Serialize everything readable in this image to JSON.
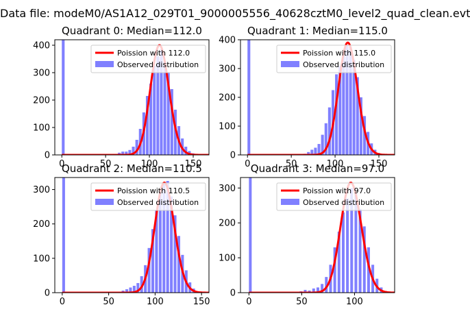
{
  "figure": {
    "suptitle": "Data file: modeM0/AS1A12_029T01_9000005556_40628cztM0_level2_quad_clean.evt"
  },
  "colors": {
    "poisson": "#ff0000",
    "observed": "#8080ff"
  },
  "chart_data": [
    {
      "type": "bar",
      "title": "Quadrant 0: Median=112.0",
      "xlim": [
        -8,
        168
      ],
      "ylim": [
        0,
        420
      ],
      "xticks": [
        0,
        50,
        100,
        150
      ],
      "yticks": [
        0,
        100,
        200,
        300,
        400
      ],
      "grid": false,
      "legend_position": "top-right",
      "median": 112.0,
      "zero_bin_count": 420,
      "series": [
        {
          "name": "Poission with 112.0",
          "type": "line",
          "mean": 112.0,
          "scale": 400
        },
        {
          "name": "Observed distribution",
          "type": "histogram",
          "bin_width": 3.2,
          "x": [
            0,
            60,
            64,
            68,
            72,
            76,
            80,
            84,
            88,
            92,
            96,
            100,
            104,
            108,
            112,
            116,
            120,
            124,
            128,
            132,
            136,
            140,
            144,
            148,
            152
          ],
          "values": [
            420,
            3,
            8,
            12,
            12,
            18,
            30,
            55,
            95,
            155,
            215,
            260,
            325,
            360,
            385,
            340,
            300,
            240,
            165,
            105,
            60,
            30,
            14,
            6,
            3
          ]
        }
      ]
    },
    {
      "type": "bar",
      "title": "Quadrant 1: Median=115.0",
      "xlim": [
        -8,
        168
      ],
      "ylim": [
        0,
        400
      ],
      "xticks": [
        0,
        50,
        100,
        150
      ],
      "yticks": [
        0,
        100,
        200,
        300,
        400
      ],
      "grid": false,
      "legend_position": "top-right",
      "median": 115.0,
      "zero_bin_count": 400,
      "series": [
        {
          "name": "Poission with 115.0",
          "type": "line",
          "mean": 115.0,
          "scale": 390
        },
        {
          "name": "Observed distribution",
          "type": "histogram",
          "bin_width": 3.2,
          "x": [
            0,
            64,
            68,
            72,
            76,
            80,
            84,
            88,
            92,
            96,
            100,
            104,
            108,
            112,
            116,
            120,
            124,
            128,
            132,
            136,
            140,
            144,
            148,
            152
          ],
          "values": [
            400,
            4,
            10,
            18,
            25,
            38,
            70,
            110,
            165,
            225,
            280,
            310,
            345,
            380,
            375,
            330,
            270,
            200,
            135,
            80,
            40,
            18,
            7,
            3
          ]
        }
      ]
    },
    {
      "type": "bar",
      "title": "Quadrant 2: Median=110.5",
      "xlim": [
        -8,
        158
      ],
      "ylim": [
        0,
        335
      ],
      "xticks": [
        0,
        50,
        100,
        150
      ],
      "yticks": [
        0,
        100,
        200,
        300
      ],
      "grid": false,
      "legend_position": "top-right",
      "median": 110.5,
      "zero_bin_count": 335,
      "series": [
        {
          "name": "Poission with 110.5",
          "type": "line",
          "mean": 110.5,
          "scale": 320
        },
        {
          "name": "Observed distribution",
          "type": "histogram",
          "bin_width": 3.0,
          "x": [
            0,
            60,
            64,
            68,
            72,
            76,
            80,
            84,
            88,
            92,
            96,
            100,
            104,
            108,
            112,
            116,
            120,
            124,
            128,
            132,
            136,
            140
          ],
          "values": [
            335,
            3,
            6,
            10,
            15,
            20,
            28,
            48,
            80,
            130,
            185,
            240,
            290,
            320,
            325,
            280,
            225,
            165,
            110,
            65,
            30,
            12
          ]
        }
      ]
    },
    {
      "type": "bar",
      "title": "Quadrant 3: Median=97.0",
      "xlim": [
        -8,
        138
      ],
      "ylim": [
        0,
        330
      ],
      "xticks": [
        0,
        50,
        100
      ],
      "yticks": [
        0,
        100,
        200,
        300
      ],
      "grid": false,
      "legend_position": "top-right",
      "median": 97.0,
      "zero_bin_count": 330,
      "series": [
        {
          "name": "Poission with 97.0",
          "type": "line",
          "mean": 97.0,
          "scale": 315
        },
        {
          "name": "Observed distribution",
          "type": "histogram",
          "bin_width": 2.6,
          "x": [
            0,
            48,
            52,
            56,
            60,
            64,
            68,
            72,
            76,
            80,
            84,
            88,
            92,
            96,
            100,
            104,
            108,
            112,
            116,
            120,
            124,
            128
          ],
          "values": [
            330,
            4,
            8,
            6,
            12,
            15,
            25,
            45,
            80,
            130,
            175,
            230,
            270,
            300,
            285,
            240,
            190,
            130,
            80,
            40,
            15,
            5
          ]
        }
      ]
    }
  ]
}
